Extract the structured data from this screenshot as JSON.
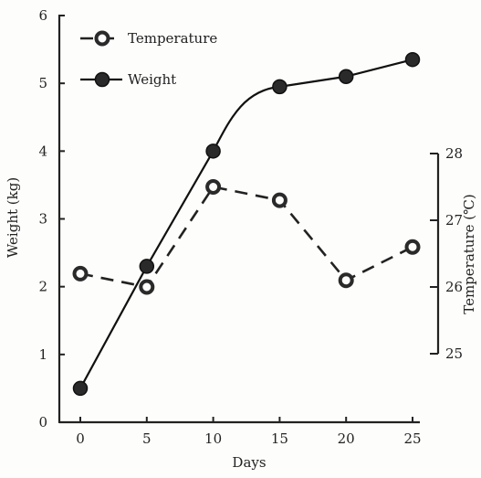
{
  "chart_data": {
    "type": "line",
    "x": [
      0,
      5,
      10,
      15,
      20,
      25
    ],
    "xlabel": "Days",
    "xlim": [
      0,
      25
    ],
    "x_ticks": [
      "0",
      "5",
      "10",
      "15",
      "20",
      "25"
    ],
    "ylabel": "Weight (kg)",
    "ylim": [
      0,
      6
    ],
    "y_ticks": [
      "0",
      "1",
      "2",
      "3",
      "4",
      "5",
      "6"
    ],
    "y2label": "Temperature (℃)",
    "y2lim": [
      25,
      28
    ],
    "y2_ticks": [
      "25",
      "26",
      "27",
      "28"
    ],
    "grid": false,
    "legend_position": "top-left",
    "series": [
      {
        "name": "Temperature",
        "axis": "right",
        "style": "dashed, open circle markers",
        "values": [
          26.2,
          26.0,
          27.5,
          27.3,
          26.1,
          26.6
        ]
      },
      {
        "name": "Weight",
        "axis": "left",
        "style": "solid, filled circle markers",
        "values": [
          0.5,
          2.3,
          4.0,
          4.95,
          5.1,
          5.35
        ]
      }
    ]
  }
}
